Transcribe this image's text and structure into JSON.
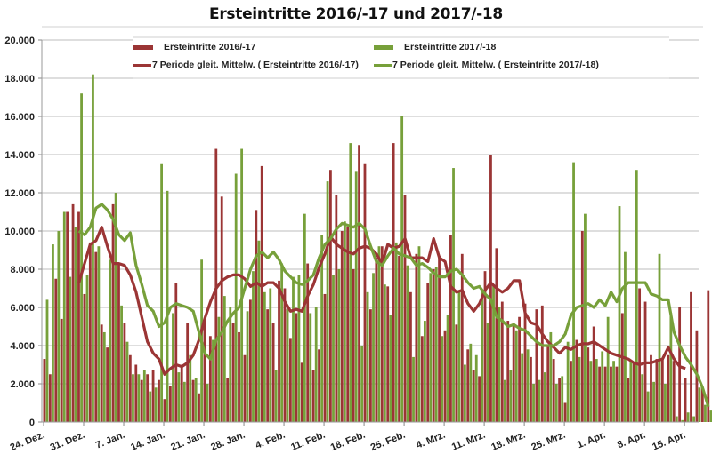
{
  "chart_data": {
    "type": "bar",
    "title": "Ersteintritte 2016/-17 und 2017/-18",
    "xlabel": "",
    "ylabel": "",
    "ylim": [
      0,
      20000
    ],
    "yticks": [
      "0",
      "2.000",
      "4.000",
      "6.000",
      "8.000",
      "10.000",
      "12.000",
      "14.000",
      "16.000",
      "18.000",
      "20.000"
    ],
    "grid": true,
    "legend_position": "top",
    "x_tick_labels": [
      "24. Dez.",
      "31. Dez.",
      "7. Jan.",
      "14. Jan.",
      "21. Jan.",
      "28. Jan.",
      "4. Feb.",
      "11. Feb.",
      "18. Feb.",
      "25. Feb.",
      "4. Mrz.",
      "11. Mrz.",
      "18. Mrz.",
      "25. Mrz.",
      "1. Apr.",
      "8. Apr.",
      "15. Apr."
    ],
    "tick_interval_days": 7,
    "series": [
      {
        "name": "Ersteintritte  2016/-17",
        "kind": "bar",
        "color": "#9b3535",
        "values": [
          3300,
          2500,
          7500,
          5400,
          11000,
          11400,
          11000,
          6700,
          9400,
          8900,
          5100,
          3900,
          11400,
          8300,
          5200,
          3500,
          3000,
          2200,
          2500,
          2700,
          2200,
          1200,
          1900,
          7300,
          3000,
          5200,
          2200,
          1500,
          5300,
          4500,
          14300,
          11800,
          2300,
          5200,
          4700,
          3500,
          6400,
          11100,
          13400,
          5900,
          5200,
          7400,
          7000,
          4400,
          5700,
          3100,
          8300,
          2700,
          3800,
          6700,
          13200,
          11900,
          10000,
          10200,
          8000,
          14500,
          13500,
          5900,
          8600,
          9200,
          7100,
          14600,
          8700,
          11900,
          6800,
          8800,
          4500,
          7300,
          8000,
          8700,
          4800,
          9800,
          5100,
          8800,
          3800,
          2700,
          2400,
          7900,
          14000,
          9100,
          6300,
          5300,
          5200,
          5500,
          6200,
          3400,
          5900,
          6100,
          4000,
          3300,
          2300,
          1000,
          3200,
          4300,
          10000,
          3900,
          5000,
          2900,
          2900,
          2900,
          2900,
          5700,
          2300,
          3100,
          7000,
          6300,
          3500,
          3300,
          3300,
          3500,
          3200,
          6000,
          2300,
          6800,
          4800,
          1800,
          6900,
          3200,
          3100,
          2700,
          3700,
          1000,
          3400,
          3000,
          2800,
          2800,
          1400
        ],
        "note": "daily values read from bar heights, starting 24 Dez"
      },
      {
        "name": "Ersteintritte  2017/-18",
        "kind": "bar",
        "color": "#77a03a",
        "values": [
          6400,
          9300,
          10000,
          11000,
          7600,
          10200,
          17200,
          7700,
          18200,
          9200,
          4700,
          8500,
          12000,
          6100,
          4200,
          2500,
          2500,
          2700,
          1600,
          1800,
          13500,
          12100,
          5700,
          2600,
          2100,
          3500,
          2300,
          8500,
          2000,
          4300,
          5500,
          6600,
          6000,
          13000,
          14300,
          5800,
          7900,
          9500,
          6800,
          7000,
          2700,
          8300,
          5900,
          7600,
          7700,
          10900,
          5700,
          6000,
          9800,
          12600,
          7700,
          8000,
          10500,
          14600,
          13100,
          4000,
          6800,
          7800,
          9200,
          7200,
          5600,
          9400,
          16000,
          8200,
          3400,
          9200,
          5300,
          7800,
          8100,
          4500,
          5600,
          13300,
          6800,
          3000,
          4100,
          3500,
          6900,
          5200,
          7200,
          6000,
          2200,
          2700,
          4800,
          3600,
          3800,
          2000,
          2200,
          2600,
          4700,
          2000,
          2400,
          4200,
          13600,
          3400,
          10900,
          3200,
          3300,
          3700,
          5500,
          3200,
          11300,
          8900,
          3200,
          13200,
          2500,
          1600,
          2100,
          8800,
          2000,
          5700,
          300,
          100,
          500,
          300,
          1800,
          900,
          600
        ],
        "note": "daily values read from bar heights, starting 24 Dez"
      },
      {
        "name": "7 Periode gleit. Mittelw. (   Ersteintritte  2016/-17)",
        "kind": "line",
        "color": "#9b3535",
        "values": [
          null,
          null,
          null,
          null,
          null,
          null,
          7300,
          8300,
          9300,
          9500,
          10200,
          9200,
          8300,
          8300,
          8200,
          7700,
          6800,
          5500,
          4200,
          3600,
          3300,
          2500,
          2800,
          3000,
          2900,
          3100,
          3500,
          4300,
          5400,
          6300,
          7000,
          7400,
          7600,
          7700,
          7700,
          7500,
          7100,
          7300,
          7100,
          7300,
          7300,
          7000,
          6300,
          5800,
          5900,
          5800,
          6600,
          7200,
          8100,
          8800,
          9700,
          9300,
          9100,
          8900,
          8800,
          9100,
          9200,
          9100,
          8800,
          8300,
          9300,
          9100,
          9200,
          9600,
          8600,
          8600,
          8600,
          8400,
          9600,
          8600,
          8400,
          7100,
          6800,
          6900,
          6200,
          5800,
          6200,
          6900,
          7300,
          7000,
          6800,
          7000,
          7400,
          7400,
          5700,
          5200,
          5100,
          4600,
          4200,
          3900,
          3600,
          3900,
          3800,
          4000,
          4100,
          4100,
          4200,
          4000,
          3800,
          3600,
          3500,
          3400,
          3300,
          3100,
          3000,
          3100,
          3100,
          3200,
          3300,
          3900,
          3300,
          2900,
          2800
        ],
        "note": "approximate, starting at day 7"
      },
      {
        "name": "7 Periode gleit. Mittelw. (   Ersteintritte  2017/-18)",
        "kind": "line",
        "color": "#77a03a",
        "values": [
          null,
          null,
          null,
          null,
          null,
          null,
          10000,
          9800,
          10200,
          11200,
          11400,
          11100,
          10600,
          9800,
          9500,
          9900,
          8200,
          7200,
          6100,
          5800,
          5000,
          5200,
          6000,
          6200,
          6100,
          6000,
          5800,
          4700,
          3600,
          3300,
          4300,
          4700,
          5300,
          5700,
          6000,
          7000,
          8000,
          8700,
          8900,
          8600,
          8900,
          8500,
          7900,
          7600,
          7300,
          7200,
          7400,
          7700,
          8600,
          9300,
          9600,
          10100,
          10400,
          10300,
          10200,
          10400,
          10100,
          9200,
          8400,
          8200,
          8700,
          9100,
          8800,
          8700,
          8600,
          8200,
          8300,
          8100,
          7800,
          7600,
          7600,
          7900,
          8000,
          7700,
          7300,
          7000,
          7100,
          6700,
          6400,
          5500,
          5300,
          5000,
          5100,
          4900,
          4800,
          4500,
          4200,
          4000,
          4000,
          4000,
          4200,
          4600,
          5600,
          6000,
          6100,
          6200,
          6000,
          6400,
          6100,
          6800,
          6300,
          7000,
          7300,
          7300,
          7300,
          7300,
          6700,
          6600,
          6400,
          6400,
          4700,
          4000,
          3400,
          3000,
          2500,
          1800,
          800
        ],
        "note": "approximate, starting at day 7"
      }
    ]
  },
  "legend": {
    "items": [
      {
        "label": "Ersteintritte  2016/-17",
        "type": "bar",
        "color": "#9b3535"
      },
      {
        "label": "Ersteintritte  2017/-18",
        "type": "bar",
        "color": "#77a03a"
      },
      {
        "label": "7 Periode gleit. Mittelw. (   Ersteintritte  2016/-17)",
        "type": "line",
        "color": "#9b3535"
      },
      {
        "label": "7 Periode gleit. Mittelw. (   Ersteintritte  2017/-18)",
        "type": "line",
        "color": "#77a03a"
      }
    ]
  }
}
